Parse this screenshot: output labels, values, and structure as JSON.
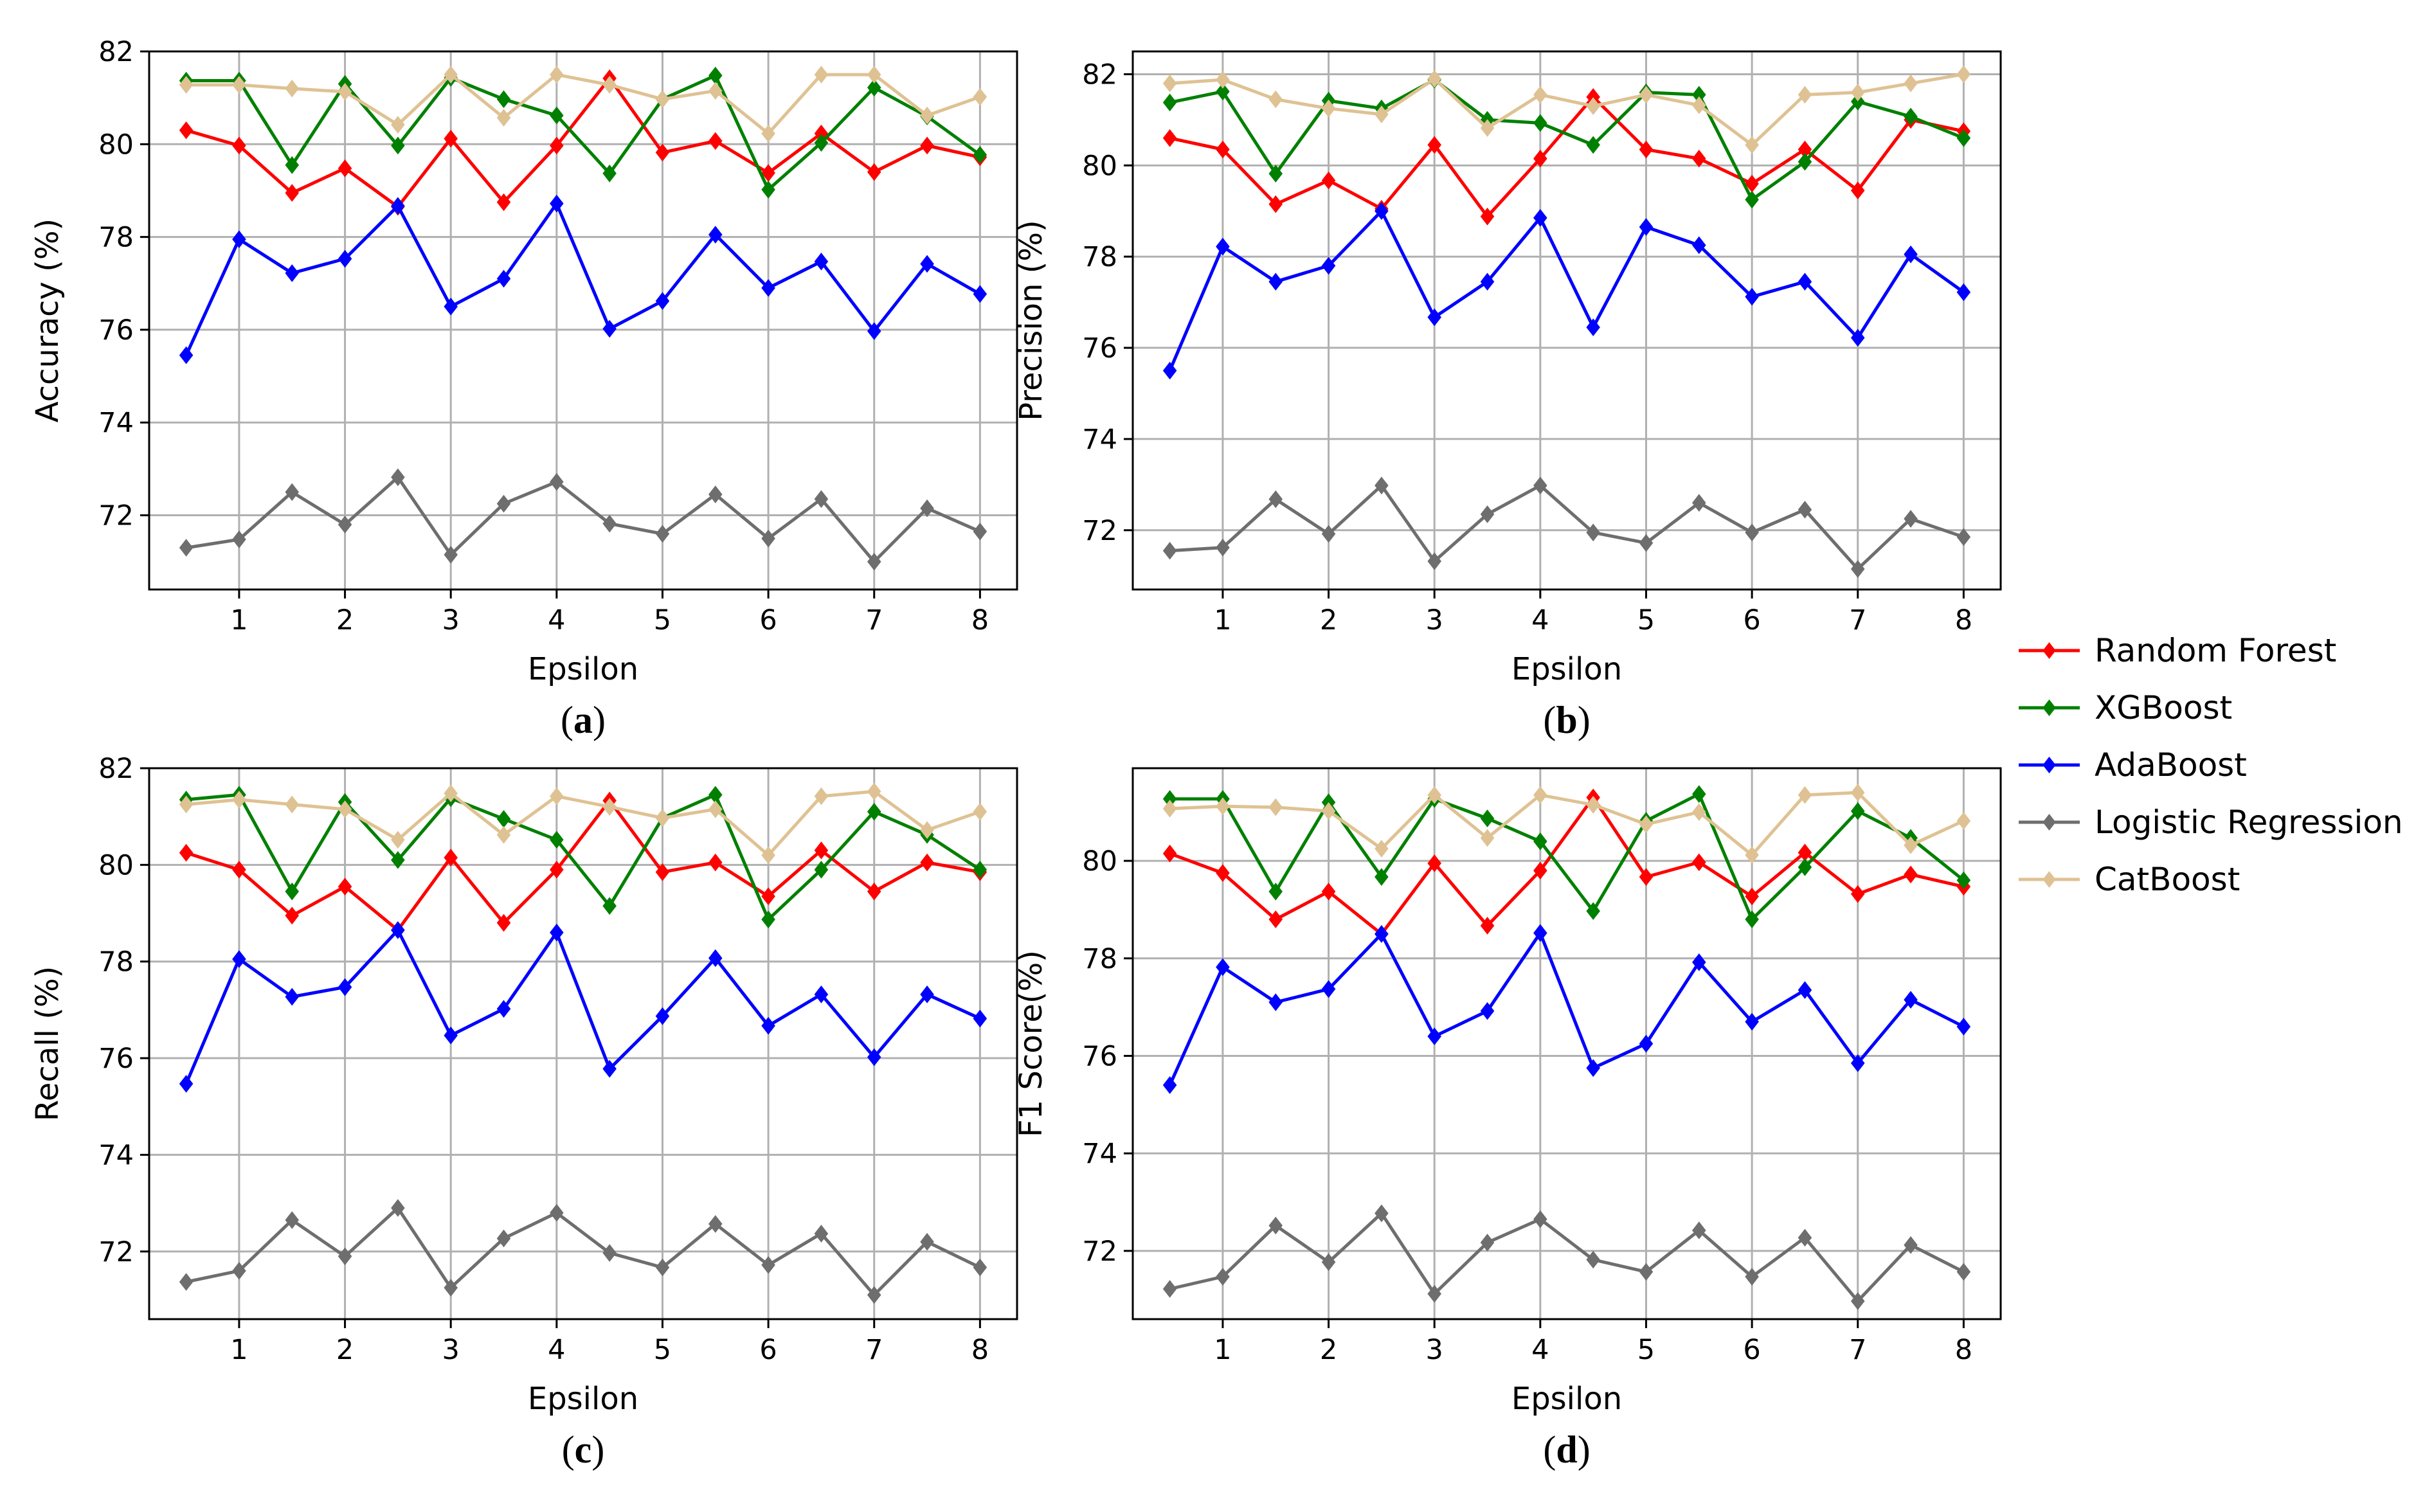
{
  "chart_data": [
    {
      "type": "line",
      "panel_label_open": "(",
      "panel_label_letter": "a",
      "panel_label_close": ")",
      "xlabel": "Epsilon",
      "ylabel": "Accuracy (%)",
      "xlim": [
        0.15,
        8.35
      ],
      "ylim": [
        70.4,
        82.0
      ],
      "xticks": [
        1,
        2,
        3,
        4,
        5,
        6,
        7,
        8
      ],
      "yticks": [
        72,
        74,
        76,
        78,
        80,
        82
      ],
      "x": [
        0.5,
        1,
        1.5,
        2,
        2.5,
        3,
        3.5,
        4,
        4.5,
        5,
        5.5,
        6,
        6.5,
        7,
        7.5,
        8
      ],
      "series": [
        {
          "name": "Random Forest",
          "color": "#ff0000",
          "values": [
            80.3,
            79.97,
            78.95,
            79.48,
            78.65,
            80.12,
            78.75,
            79.97,
            81.42,
            79.82,
            80.07,
            79.38,
            80.23,
            79.4,
            79.97,
            79.72
          ]
        },
        {
          "name": "XGBoost",
          "color": "#008000",
          "values": [
            81.37,
            81.37,
            79.55,
            81.3,
            79.97,
            81.43,
            80.97,
            80.62,
            79.37,
            80.97,
            81.48,
            79.02,
            80.03,
            81.22,
            80.6,
            79.77
          ]
        },
        {
          "name": "AdaBoost",
          "color": "#0000ff",
          "values": [
            75.45,
            77.95,
            77.22,
            77.53,
            78.67,
            76.5,
            77.1,
            78.72,
            76.02,
            76.62,
            78.05,
            76.9,
            77.47,
            75.97,
            77.42,
            76.77
          ]
        },
        {
          "name": "Logistic Regression",
          "color": "#6e6e6e",
          "values": [
            71.3,
            71.48,
            72.5,
            71.8,
            72.82,
            71.15,
            72.25,
            72.72,
            71.82,
            71.6,
            72.45,
            71.5,
            72.35,
            71.0,
            72.15,
            71.65
          ]
        },
        {
          "name": "CatBoost",
          "color": "#dfc293",
          "values": [
            81.28,
            81.28,
            81.2,
            81.13,
            80.42,
            81.5,
            80.57,
            81.5,
            81.28,
            80.97,
            81.15,
            80.23,
            81.5,
            81.5,
            80.62,
            81.02
          ]
        }
      ]
    },
    {
      "type": "line",
      "panel_label_open": "(",
      "panel_label_letter": "b",
      "panel_label_close": ")",
      "xlabel": "Epsilon",
      "ylabel": "Precision (%)",
      "xlim": [
        0.15,
        8.35
      ],
      "ylim": [
        70.7,
        82.5
      ],
      "xticks": [
        1,
        2,
        3,
        4,
        5,
        6,
        7,
        8
      ],
      "yticks": [
        72,
        74,
        76,
        78,
        80,
        82
      ],
      "x": [
        0.5,
        1,
        1.5,
        2,
        2.5,
        3,
        3.5,
        4,
        4.5,
        5,
        5.5,
        6,
        6.5,
        7,
        7.5,
        8
      ],
      "series": [
        {
          "name": "Random Forest",
          "color": "#ff0000",
          "values": [
            80.6,
            80.35,
            79.15,
            79.67,
            79.05,
            80.45,
            78.88,
            80.15,
            81.5,
            80.35,
            80.15,
            79.6,
            80.35,
            79.45,
            81.0,
            80.75
          ]
        },
        {
          "name": "XGBoost",
          "color": "#008000",
          "values": [
            81.38,
            81.62,
            79.82,
            81.42,
            81.25,
            81.88,
            81.0,
            80.93,
            80.45,
            81.6,
            81.55,
            79.25,
            80.08,
            81.4,
            81.07,
            80.6
          ]
        },
        {
          "name": "AdaBoost",
          "color": "#0000ff",
          "values": [
            75.5,
            78.22,
            77.45,
            77.8,
            79.0,
            76.67,
            77.45,
            78.85,
            76.45,
            78.65,
            78.25,
            77.12,
            77.45,
            76.22,
            78.05,
            77.22
          ]
        },
        {
          "name": "Logistic Regression",
          "color": "#6e6e6e",
          "values": [
            71.55,
            71.62,
            72.68,
            71.92,
            72.98,
            71.32,
            72.35,
            72.98,
            71.95,
            71.72,
            72.6,
            71.95,
            72.45,
            71.15,
            72.25,
            71.85
          ]
        },
        {
          "name": "CatBoost",
          "color": "#dfc293",
          "values": [
            81.8,
            81.88,
            81.45,
            81.25,
            81.12,
            81.9,
            80.82,
            81.55,
            81.3,
            81.55,
            81.32,
            80.45,
            81.55,
            81.6,
            81.8,
            82.0
          ]
        }
      ]
    },
    {
      "type": "line",
      "panel_label_open": "(",
      "panel_label_letter": "c",
      "panel_label_close": ")",
      "xlabel": "Epsilon",
      "ylabel": "Recall (%)",
      "xlim": [
        0.15,
        8.35
      ],
      "ylim": [
        70.6,
        82.0
      ],
      "xticks": [
        1,
        2,
        3,
        4,
        5,
        6,
        7,
        8
      ],
      "yticks": [
        72,
        74,
        76,
        78,
        80,
        82
      ],
      "x": [
        0.5,
        1,
        1.5,
        2,
        2.5,
        3,
        3.5,
        4,
        4.5,
        5,
        5.5,
        6,
        6.5,
        7,
        7.5,
        8
      ],
      "series": [
        {
          "name": "Random Forest",
          "color": "#ff0000",
          "values": [
            80.25,
            79.9,
            78.95,
            79.55,
            78.65,
            80.15,
            78.8,
            79.9,
            81.33,
            79.85,
            80.05,
            79.35,
            80.3,
            79.45,
            80.05,
            79.85
          ]
        },
        {
          "name": "XGBoost",
          "color": "#008000",
          "values": [
            81.35,
            81.45,
            79.45,
            81.3,
            80.1,
            81.38,
            80.95,
            80.52,
            79.15,
            80.97,
            81.45,
            78.87,
            79.9,
            81.1,
            80.62,
            79.9
          ]
        },
        {
          "name": "AdaBoost",
          "color": "#0000ff",
          "values": [
            75.47,
            78.05,
            77.27,
            77.47,
            78.65,
            76.47,
            77.02,
            78.6,
            75.78,
            76.87,
            78.07,
            76.67,
            77.32,
            76.02,
            77.32,
            76.82
          ]
        },
        {
          "name": "Logistic Regression",
          "color": "#6e6e6e",
          "values": [
            71.37,
            71.6,
            72.65,
            71.9,
            72.9,
            71.25,
            72.27,
            72.8,
            71.97,
            71.67,
            72.57,
            71.72,
            72.37,
            71.1,
            72.2,
            71.67
          ]
        },
        {
          "name": "CatBoost",
          "color": "#dfc293",
          "values": [
            81.25,
            81.35,
            81.25,
            81.15,
            80.52,
            81.48,
            80.62,
            81.42,
            81.2,
            80.97,
            81.15,
            80.2,
            81.42,
            81.52,
            80.72,
            81.1
          ]
        }
      ]
    },
    {
      "type": "line",
      "panel_label_open": "(",
      "panel_label_letter": "d",
      "panel_label_close": ")",
      "xlabel": "Epsilon",
      "ylabel": "F1 Score(%)",
      "xlim": [
        0.15,
        8.35
      ],
      "ylim": [
        70.6,
        81.9
      ],
      "xticks": [
        1,
        2,
        3,
        4,
        5,
        6,
        7,
        8
      ],
      "yticks": [
        72,
        74,
        76,
        78,
        80
      ],
      "x": [
        0.5,
        1,
        1.5,
        2,
        2.5,
        3,
        3.5,
        4,
        4.5,
        5,
        5.5,
        6,
        6.5,
        7,
        7.5,
        8
      ],
      "series": [
        {
          "name": "Random Forest",
          "color": "#ff0000",
          "values": [
            80.15,
            79.75,
            78.8,
            79.37,
            78.5,
            79.95,
            78.67,
            79.8,
            81.3,
            79.67,
            79.97,
            79.27,
            80.17,
            79.32,
            79.72,
            79.47
          ]
        },
        {
          "name": "XGBoost",
          "color": "#008000",
          "values": [
            81.27,
            81.27,
            79.37,
            81.2,
            79.67,
            81.27,
            80.87,
            80.4,
            78.97,
            80.82,
            81.37,
            78.8,
            79.87,
            81.02,
            80.47,
            79.6
          ]
        },
        {
          "name": "AdaBoost",
          "color": "#0000ff",
          "values": [
            75.4,
            77.82,
            77.1,
            77.37,
            78.5,
            76.4,
            76.92,
            78.52,
            75.75,
            76.25,
            77.92,
            76.7,
            77.35,
            75.85,
            77.15,
            76.6
          ]
        },
        {
          "name": "Logistic Regression",
          "color": "#6e6e6e",
          "values": [
            71.22,
            71.47,
            72.52,
            71.77,
            72.77,
            71.12,
            72.17,
            72.65,
            71.82,
            71.57,
            72.42,
            71.47,
            72.27,
            70.97,
            72.12,
            71.57
          ]
        },
        {
          "name": "CatBoost",
          "color": "#dfc293",
          "values": [
            81.07,
            81.12,
            81.1,
            81.02,
            80.25,
            81.35,
            80.47,
            81.35,
            81.15,
            80.75,
            81.0,
            80.12,
            81.35,
            81.4,
            80.32,
            80.82
          ]
        }
      ]
    }
  ],
  "legend": {
    "placement": "right-center",
    "items": [
      {
        "label": "Random Forest",
        "color": "#ff0000"
      },
      {
        "label": "XGBoost",
        "color": "#008000"
      },
      {
        "label": "AdaBoost",
        "color": "#0000ff"
      },
      {
        "label": "Logistic Regression",
        "color": "#6e6e6e"
      },
      {
        "label": "CatBoost",
        "color": "#dfc293"
      }
    ]
  }
}
